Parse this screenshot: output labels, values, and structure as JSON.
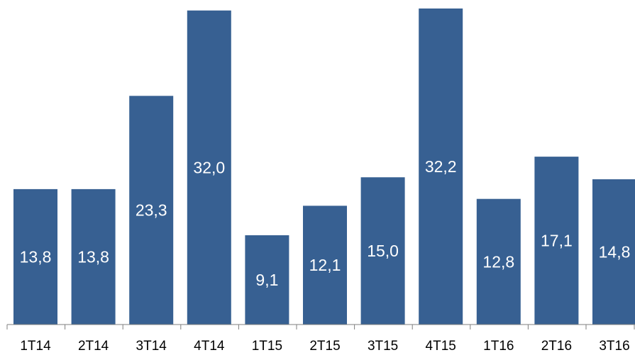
{
  "chart_data": {
    "type": "bar",
    "categories": [
      "1T14",
      "2T14",
      "3T14",
      "4T14",
      "1T15",
      "2T15",
      "3T15",
      "4T15",
      "1T16",
      "2T16",
      "3T16"
    ],
    "values": [
      13.8,
      13.8,
      23.3,
      32.0,
      9.1,
      12.1,
      15.0,
      32.2,
      12.8,
      17.1,
      14.8
    ],
    "value_labels": [
      "13,8",
      "13,8",
      "23,3",
      "32,0",
      "9,1",
      "12,1",
      "15,0",
      "32,2",
      "12,8",
      "17,1",
      "14,8"
    ],
    "bar_color": "#376092",
    "label_color": "#ffffff",
    "ylim": [
      0,
      32.2
    ],
    "grid": false,
    "legend": "none"
  }
}
